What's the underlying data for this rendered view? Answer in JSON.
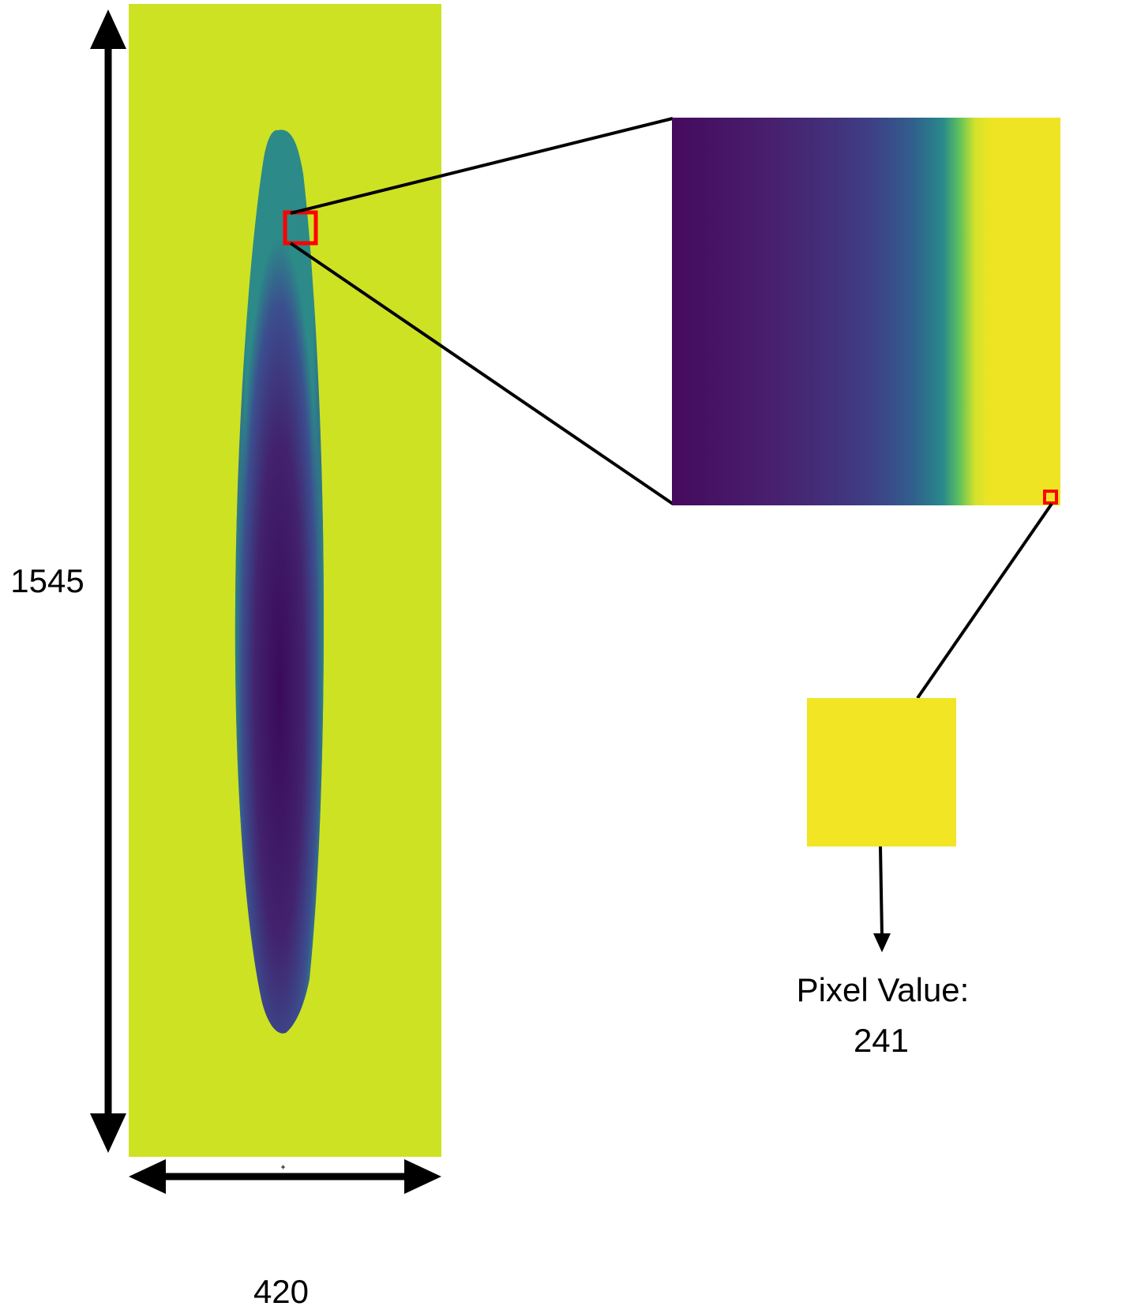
{
  "dimensions": {
    "height_label": "1545",
    "width_label": "420"
  },
  "readout": {
    "line1": "Pixel Value:",
    "line2": "241"
  },
  "colors": {
    "background_field": "#cde223",
    "droplet_dark": "#3f0d5c",
    "droplet_mid": "#3c3e8b",
    "droplet_edge": "#2a8a86",
    "zoom_yellow": "#efe423",
    "pixel_swatch": "#f2e523",
    "highlight_box": "#ff0000",
    "lines": "#000000"
  }
}
